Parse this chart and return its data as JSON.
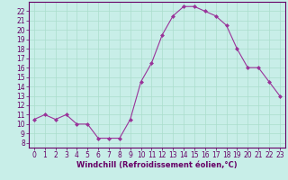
{
  "x": [
    0,
    1,
    2,
    3,
    4,
    5,
    6,
    7,
    8,
    9,
    10,
    11,
    12,
    13,
    14,
    15,
    16,
    17,
    18,
    19,
    20,
    21,
    22,
    23
  ],
  "y": [
    10.5,
    11.0,
    10.5,
    11.0,
    10.0,
    10.0,
    8.5,
    8.5,
    8.5,
    10.5,
    14.5,
    16.5,
    19.5,
    21.5,
    22.5,
    22.5,
    22.0,
    21.5,
    20.5,
    18.0,
    16.0,
    16.0,
    14.5,
    13.0
  ],
  "line_color": "#993399",
  "marker": "D",
  "marker_size": 2.0,
  "bg_color": "#c8eee8",
  "grid_color": "#aaddcc",
  "xlabel": "Windchill (Refroidissement éolien,°C)",
  "xlim": [
    -0.5,
    23.5
  ],
  "ylim": [
    7.5,
    23.0
  ],
  "yticks": [
    8,
    9,
    10,
    11,
    12,
    13,
    14,
    15,
    16,
    17,
    18,
    19,
    20,
    21,
    22
  ],
  "xticks": [
    0,
    1,
    2,
    3,
    4,
    5,
    6,
    7,
    8,
    9,
    10,
    11,
    12,
    13,
    14,
    15,
    16,
    17,
    18,
    19,
    20,
    21,
    22,
    23
  ],
  "tick_label_size": 5.5,
  "xlabel_size": 6.0,
  "axis_color": "#660066",
  "linewidth": 0.8
}
